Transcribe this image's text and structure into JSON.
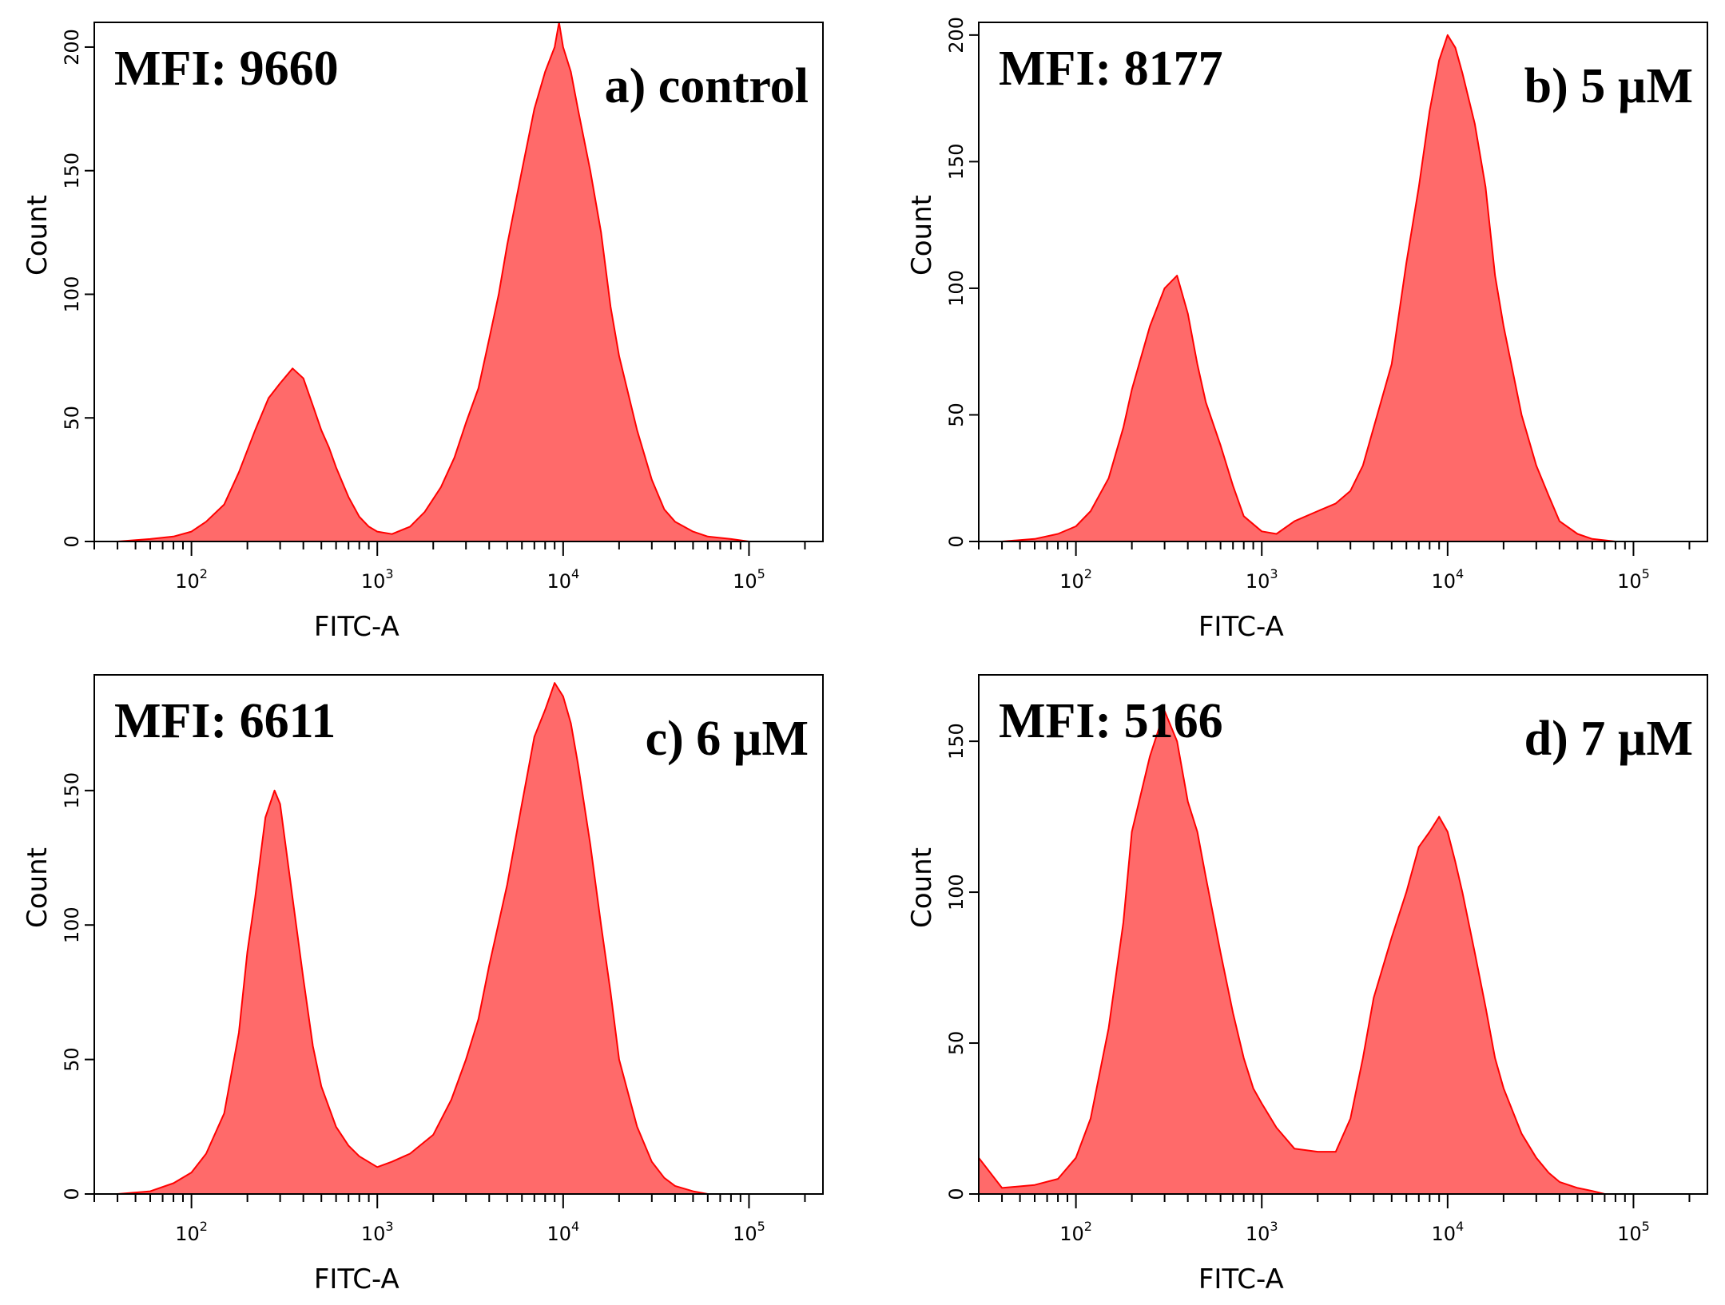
{
  "chart_data": [
    {
      "type": "area",
      "label": "a) control",
      "mfi": "MFI: 9660",
      "xlabel": "FITC-A",
      "ylabel": "Count",
      "x_scale": "log",
      "xlim": [
        30,
        250000
      ],
      "ylim": [
        0,
        210
      ],
      "y_ticks": [
        0,
        50,
        100,
        150,
        200
      ],
      "x_ticks": [
        {
          "base": "10",
          "exp": "2",
          "value": 100
        },
        {
          "base": "10",
          "exp": "3",
          "value": 1000
        },
        {
          "base": "10",
          "exp": "4",
          "value": 10000
        },
        {
          "base": "10",
          "exp": "5",
          "value": 100000
        }
      ],
      "color": "#ff6a6a",
      "stroke": "#ff0000",
      "x": [
        40,
        60,
        80,
        100,
        120,
        150,
        180,
        220,
        260,
        300,
        350,
        400,
        450,
        500,
        550,
        600,
        700,
        800,
        900,
        1000,
        1200,
        1500,
        1800,
        2200,
        2600,
        3000,
        3500,
        4000,
        4500,
        5000,
        6000,
        7000,
        8000,
        9000,
        9500,
        10000,
        11000,
        12000,
        14000,
        16000,
        18000,
        20000,
        25000,
        30000,
        35000,
        40000,
        50000,
        60000,
        80000,
        100000
      ],
      "y": [
        0,
        1,
        2,
        4,
        8,
        15,
        28,
        45,
        58,
        64,
        70,
        66,
        55,
        45,
        38,
        30,
        18,
        10,
        6,
        4,
        3,
        6,
        12,
        22,
        34,
        48,
        62,
        82,
        100,
        120,
        150,
        175,
        190,
        200,
        210,
        200,
        190,
        175,
        150,
        125,
        95,
        75,
        45,
        25,
        13,
        8,
        4,
        2,
        1,
        0
      ]
    },
    {
      "type": "area",
      "label": "b) 5 µM",
      "mfi": "MFI: 8177",
      "xlabel": "FITC-A",
      "ylabel": "Count",
      "x_scale": "log",
      "xlim": [
        30,
        250000
      ],
      "ylim": [
        0,
        205
      ],
      "y_ticks": [
        0,
        50,
        100,
        150,
        200
      ],
      "x_ticks": [
        {
          "base": "10",
          "exp": "2",
          "value": 100
        },
        {
          "base": "10",
          "exp": "3",
          "value": 1000
        },
        {
          "base": "10",
          "exp": "4",
          "value": 10000
        },
        {
          "base": "10",
          "exp": "5",
          "value": 100000
        }
      ],
      "color": "#ff6a6a",
      "stroke": "#ff0000",
      "x": [
        40,
        60,
        80,
        100,
        120,
        150,
        180,
        200,
        250,
        300,
        350,
        400,
        450,
        500,
        600,
        700,
        800,
        1000,
        1200,
        1500,
        2000,
        2500,
        3000,
        3500,
        4000,
        5000,
        6000,
        7000,
        8000,
        9000,
        10000,
        11000,
        12000,
        14000,
        16000,
        18000,
        20000,
        25000,
        30000,
        35000,
        40000,
        50000,
        60000,
        80000
      ],
      "y": [
        0,
        1,
        3,
        6,
        12,
        25,
        45,
        60,
        85,
        100,
        105,
        90,
        70,
        55,
        38,
        22,
        10,
        4,
        3,
        8,
        12,
        15,
        20,
        30,
        45,
        70,
        110,
        140,
        170,
        190,
        200,
        195,
        185,
        165,
        140,
        105,
        85,
        50,
        30,
        18,
        8,
        3,
        1,
        0
      ]
    },
    {
      "type": "area",
      "label": "c) 6 µM",
      "mfi": "MFI: 6611",
      "xlabel": "FITC-A",
      "ylabel": "Count",
      "x_scale": "log",
      "xlim": [
        30,
        250000
      ],
      "ylim": [
        0,
        193
      ],
      "y_ticks": [
        0,
        50,
        100,
        150
      ],
      "x_ticks": [
        {
          "base": "10",
          "exp": "2",
          "value": 100
        },
        {
          "base": "10",
          "exp": "3",
          "value": 1000
        },
        {
          "base": "10",
          "exp": "4",
          "value": 10000
        },
        {
          "base": "10",
          "exp": "5",
          "value": 100000
        }
      ],
      "color": "#ff6a6a",
      "stroke": "#ff0000",
      "x": [
        40,
        60,
        80,
        100,
        120,
        150,
        180,
        200,
        220,
        250,
        280,
        300,
        350,
        400,
        450,
        500,
        600,
        700,
        800,
        1000,
        1200,
        1500,
        2000,
        2500,
        3000,
        3500,
        4000,
        5000,
        6000,
        7000,
        8000,
        9000,
        10000,
        11000,
        12000,
        14000,
        16000,
        18000,
        20000,
        25000,
        30000,
        35000,
        40000,
        50000,
        60000
      ],
      "y": [
        0,
        1,
        4,
        8,
        15,
        30,
        60,
        90,
        110,
        140,
        150,
        145,
        110,
        80,
        55,
        40,
        25,
        18,
        14,
        10,
        12,
        15,
        22,
        35,
        50,
        65,
        85,
        115,
        145,
        170,
        180,
        190,
        185,
        175,
        160,
        130,
        100,
        75,
        50,
        25,
        12,
        6,
        3,
        1,
        0
      ]
    },
    {
      "type": "area",
      "label": "d) 7 µM",
      "mfi": "MFI: 5166",
      "xlabel": "FITC-A",
      "ylabel": "Count",
      "x_scale": "log",
      "xlim": [
        30,
        250000
      ],
      "ylim": [
        0,
        172
      ],
      "y_ticks": [
        0,
        50,
        100,
        150
      ],
      "x_ticks": [
        {
          "base": "10",
          "exp": "2",
          "value": 100
        },
        {
          "base": "10",
          "exp": "3",
          "value": 1000
        },
        {
          "base": "10",
          "exp": "4",
          "value": 10000
        },
        {
          "base": "10",
          "exp": "5",
          "value": 100000
        }
      ],
      "color": "#ff6a6a",
      "stroke": "#ff0000",
      "x": [
        30,
        40,
        60,
        80,
        100,
        120,
        150,
        180,
        200,
        250,
        300,
        350,
        400,
        450,
        500,
        600,
        700,
        800,
        900,
        1000,
        1200,
        1500,
        2000,
        2500,
        3000,
        3500,
        4000,
        5000,
        6000,
        7000,
        8000,
        9000,
        10000,
        11000,
        12000,
        14000,
        16000,
        18000,
        20000,
        25000,
        30000,
        35000,
        40000,
        50000,
        60000,
        70000
      ],
      "y": [
        12,
        2,
        3,
        5,
        12,
        25,
        55,
        90,
        120,
        145,
        160,
        150,
        130,
        120,
        105,
        80,
        60,
        45,
        35,
        30,
        22,
        15,
        14,
        14,
        25,
        45,
        65,
        85,
        100,
        115,
        120,
        125,
        120,
        110,
        100,
        80,
        62,
        45,
        35,
        20,
        12,
        7,
        4,
        2,
        1,
        0
      ]
    }
  ]
}
